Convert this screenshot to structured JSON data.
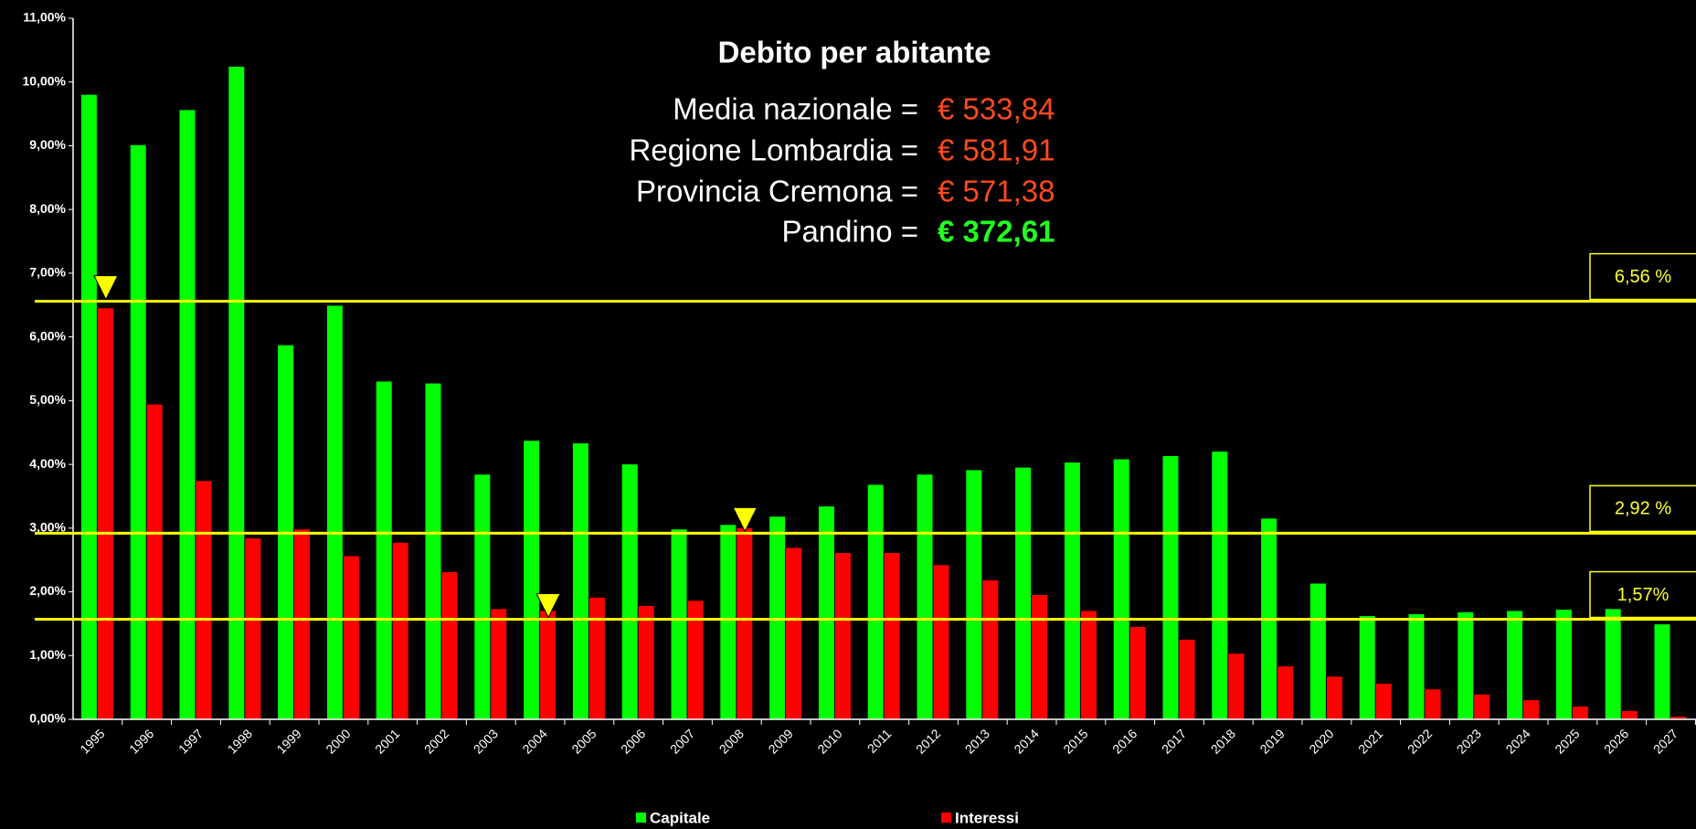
{
  "chart_data": {
    "type": "bar",
    "title": "Debito per abitante",
    "stats": [
      {
        "label": "Media nazionale =",
        "value": "€ 533,84"
      },
      {
        "label": "Regione Lombardia =",
        "value": "€ 581,91"
      },
      {
        "label": "Provincia Cremona =",
        "value": "€ 571,38"
      },
      {
        "label": "Pandino =",
        "value": "€ 372,61"
      }
    ],
    "categories": [
      "1995",
      "1996",
      "1997",
      "1998",
      "1999",
      "2000",
      "2001",
      "2002",
      "2003",
      "2004",
      "2005",
      "2006",
      "2007",
      "2008",
      "2009",
      "2010",
      "2011",
      "2012",
      "2013",
      "2014",
      "2015",
      "2016",
      "2017",
      "2018",
      "2019",
      "2020",
      "2021",
      "2022",
      "2023",
      "2024",
      "2025",
      "2026",
      "2027"
    ],
    "series": [
      {
        "name": "Capitale",
        "color": "#00ff00",
        "values": [
          9.8,
          9.01,
          9.56,
          10.24,
          5.87,
          6.49,
          5.3,
          5.27,
          3.84,
          4.37,
          4.33,
          4.0,
          2.98,
          3.05,
          3.18,
          3.34,
          3.68,
          3.84,
          3.91,
          3.95,
          4.03,
          4.08,
          4.13,
          4.2,
          3.15,
          2.13,
          1.62,
          1.65,
          1.68,
          1.7,
          1.72,
          1.73,
          1.49
        ]
      },
      {
        "name": "Interessi",
        "color": "#ff0000",
        "values": [
          6.45,
          4.94,
          3.74,
          2.84,
          2.98,
          2.56,
          2.77,
          2.31,
          1.73,
          1.7,
          1.91,
          1.78,
          1.86,
          3.0,
          2.69,
          2.61,
          2.61,
          2.42,
          2.18,
          1.95,
          1.7,
          1.45,
          1.25,
          1.03,
          0.83,
          0.67,
          0.56,
          0.47,
          0.39,
          0.3,
          0.2,
          0.13,
          0.04
        ]
      }
    ],
    "ylim": [
      0,
      11
    ],
    "yticks": [
      {
        "value": 0,
        "label": "0,00%"
      },
      {
        "value": 1,
        "label": "1,00%"
      },
      {
        "value": 2,
        "label": "2,00%"
      },
      {
        "value": 3,
        "label": "3,00%"
      },
      {
        "value": 4,
        "label": "4,00%"
      },
      {
        "value": 5,
        "label": "5,00%"
      },
      {
        "value": 6,
        "label": "6,00%"
      },
      {
        "value": 7,
        "label": "7,00%"
      },
      {
        "value": 8,
        "label": "8,00%"
      },
      {
        "value": 9,
        "label": "9,00%"
      },
      {
        "value": 10,
        "label": "10,00%"
      },
      {
        "value": 11,
        "label": "11,00%"
      }
    ],
    "reference_lines": [
      {
        "value": 6.56,
        "label": "6,56 %"
      },
      {
        "value": 2.92,
        "label": "2,92 %"
      },
      {
        "value": 1.57,
        "label": "1,57%"
      }
    ],
    "reference_color": "#ffff00",
    "grid": false
  }
}
